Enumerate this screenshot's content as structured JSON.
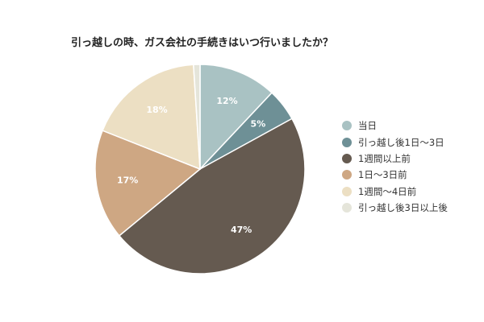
{
  "chart_data": {
    "type": "pie",
    "title": "引っ越しの時、ガス会社の手続きはいつ行いましたか？",
    "slices": [
      {
        "label": "当日",
        "value": 12,
        "value_label": "12%",
        "color": "#a9c2c3"
      },
      {
        "label": "引っ越し後1日～3日",
        "value": 5,
        "value_label": "5%",
        "color": "#6e9096"
      },
      {
        "label": "1週間以上前",
        "value": 47,
        "value_label": "47%",
        "color": "#655a50"
      },
      {
        "label": "1日～3日前",
        "value": 17,
        "value_label": "17%",
        "color": "#cea783"
      },
      {
        "label": "1週間～4日前",
        "value": 18,
        "value_label": "18%",
        "color": "#ecdfc3"
      },
      {
        "label": "引っ越し後3日以上後",
        "value": 1,
        "value_label": "",
        "color": "#e5e5da"
      }
    ],
    "legend_position": "right",
    "start_angle": "top, clockwise"
  }
}
